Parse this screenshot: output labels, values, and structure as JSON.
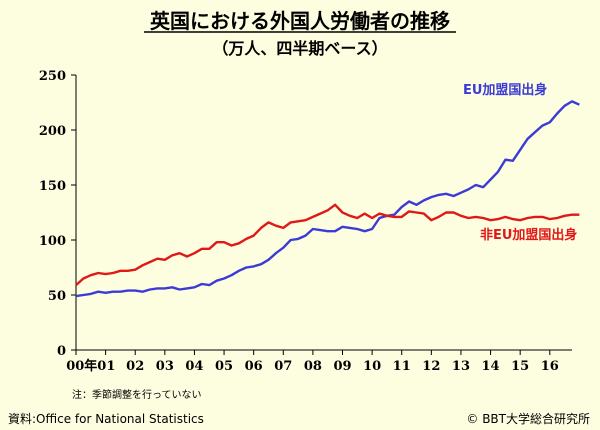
{
  "chart_data": {
    "type": "line",
    "title": "英国における外国人労働者の推移",
    "subtitle": "（万人、四半期ベース）",
    "ylim": [
      0,
      250
    ],
    "yticks": [
      0,
      50,
      100,
      150,
      200,
      250
    ],
    "xlim": [
      2000,
      2016.75
    ],
    "xticks": [
      {
        "label": "00年01",
        "x": 2000.5
      },
      {
        "label": "02",
        "x": 2002
      },
      {
        "label": "03",
        "x": 2003
      },
      {
        "label": "04",
        "x": 2004
      },
      {
        "label": "05",
        "x": 2005
      },
      {
        "label": "06",
        "x": 2006
      },
      {
        "label": "07",
        "x": 2007
      },
      {
        "label": "08",
        "x": 2008
      },
      {
        "label": "09",
        "x": 2009
      },
      {
        "label": "10",
        "x": 2010
      },
      {
        "label": "11",
        "x": 2011
      },
      {
        "label": "12",
        "x": 2012
      },
      {
        "label": "13",
        "x": 2013
      },
      {
        "label": "14",
        "x": 2014
      },
      {
        "label": "15",
        "x": 2015
      },
      {
        "label": "16",
        "x": 2016
      }
    ],
    "x_start": 2000,
    "x_step": 0.25,
    "series": [
      {
        "name": "EU加盟国出身",
        "color": "#3b3bd6",
        "values": [
          49,
          50,
          51,
          53,
          52,
          53,
          53,
          54,
          54,
          53,
          55,
          56,
          56,
          57,
          55,
          56,
          57,
          60,
          59,
          63,
          65,
          68,
          72,
          75,
          76,
          78,
          82,
          88,
          93,
          100,
          101,
          104,
          110,
          109,
          108,
          108,
          112,
          111,
          110,
          108,
          110,
          120,
          122,
          123,
          130,
          135,
          132,
          136,
          139,
          141,
          142,
          140,
          143,
          146,
          150,
          148,
          155,
          162,
          173,
          172,
          182,
          192,
          198,
          204,
          207,
          215,
          222,
          226,
          223
        ]
      },
      {
        "name": "非EU加盟国出身",
        "color": "#e01818",
        "values": [
          59,
          65,
          68,
          70,
          69,
          70,
          72,
          72,
          73,
          77,
          80,
          83,
          82,
          86,
          88,
          85,
          88,
          92,
          92,
          98,
          98,
          95,
          97,
          101,
          104,
          111,
          116,
          113,
          111,
          116,
          117,
          118,
          121,
          124,
          127,
          132,
          125,
          122,
          120,
          124,
          120,
          124,
          122,
          121,
          121,
          126,
          125,
          124,
          118,
          121,
          125,
          125,
          122,
          120,
          121,
          120,
          118,
          119,
          121,
          119,
          118,
          120,
          121,
          121,
          119,
          120,
          122,
          123,
          123
        ]
      }
    ],
    "series_labels": [
      "EU加盟国出身",
      "非EU加盟国出身"
    ]
  },
  "note": "注：季節調整を行っていない",
  "source": "資料:Office for National Statistics",
  "copyright": "© BBT大学総合研究所"
}
